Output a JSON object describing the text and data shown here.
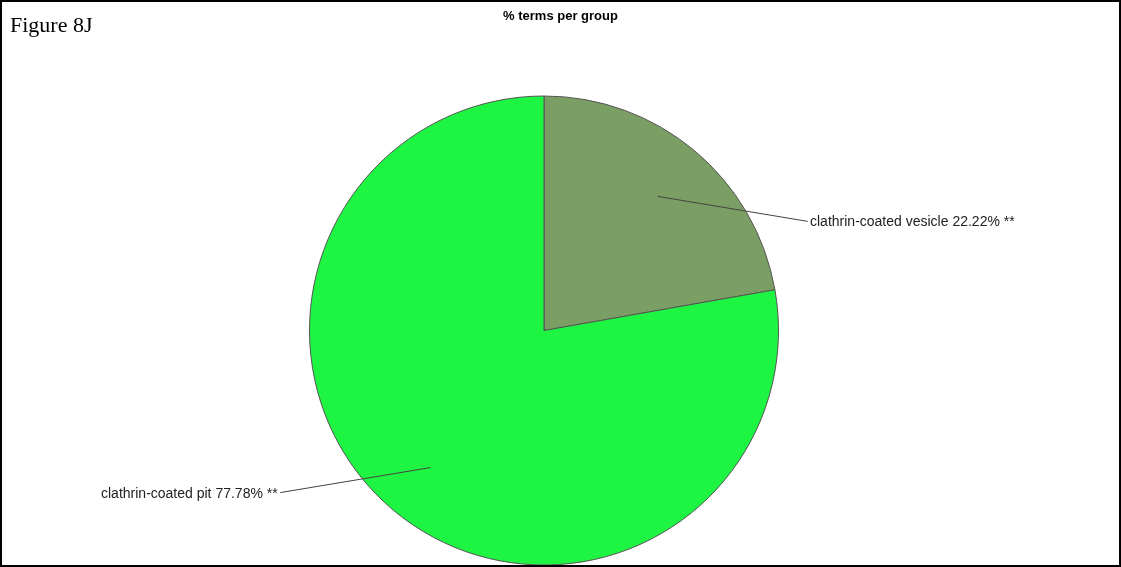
{
  "chart_data": {
    "type": "pie",
    "title": "% terms per group",
    "categories": [
      "clathrin-coated vesicle",
      "clathrin-coated pit"
    ],
    "values": [
      22.22,
      77.78
    ],
    "colors": [
      "#7a9e64",
      "#1ef542"
    ],
    "value_labels": [
      "22.22% **",
      "77.78% **"
    ],
    "annotations": [
      "Figure 8J"
    ]
  }
}
